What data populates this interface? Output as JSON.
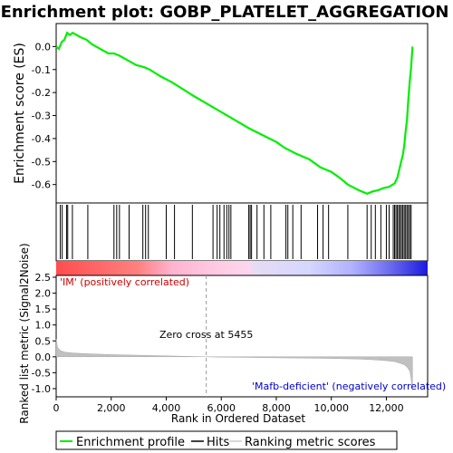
{
  "chart_data": {
    "type": "line",
    "title": "Enrichment plot: GOBP_PLATELET_AGGREGATION",
    "es_panel": {
      "ylabel": "Enrichment score (ES)",
      "ylim": [
        -0.68,
        0.1
      ],
      "yticks": [
        0.0,
        -0.1,
        -0.2,
        -0.3,
        -0.4,
        -0.5,
        -0.6
      ],
      "ytick_labels": [
        "0.0",
        "-0.1",
        "-0.2",
        "-0.3",
        "-0.4",
        "-0.5",
        "-0.6"
      ],
      "color": "#00ee00",
      "x": [
        0,
        100,
        200,
        300,
        400,
        500,
        600,
        900,
        1100,
        1300,
        1600,
        1900,
        2100,
        2300,
        2600,
        2900,
        3200,
        3400,
        3800,
        4200,
        4600,
        5000,
        5500,
        6000,
        6500,
        7000,
        7500,
        8000,
        8300,
        8700,
        9200,
        9600,
        10000,
        10300,
        10600,
        11000,
        11300,
        11500,
        11700,
        11900,
        12100,
        12300,
        12400,
        12500,
        12600,
        12650,
        12700,
        12750,
        12800,
        12850,
        12900,
        12950
      ],
      "values": [
        0.0,
        -0.01,
        0.02,
        0.03,
        0.06,
        0.05,
        0.06,
        0.04,
        0.03,
        0.01,
        -0.01,
        -0.03,
        -0.03,
        -0.04,
        -0.06,
        -0.08,
        -0.09,
        -0.1,
        -0.13,
        -0.155,
        -0.185,
        -0.215,
        -0.25,
        -0.285,
        -0.32,
        -0.355,
        -0.385,
        -0.415,
        -0.44,
        -0.465,
        -0.49,
        -0.525,
        -0.545,
        -0.57,
        -0.6,
        -0.625,
        -0.64,
        -0.63,
        -0.625,
        -0.615,
        -0.61,
        -0.595,
        -0.57,
        -0.52,
        -0.47,
        -0.43,
        -0.37,
        -0.32,
        -0.23,
        -0.15,
        -0.09,
        0.0
      ]
    },
    "hits": [
      150,
      220,
      380,
      420,
      590,
      1150,
      2100,
      2200,
      2300,
      2650,
      3150,
      3250,
      3350,
      4000,
      4300,
      4950,
      5700,
      5850,
      5950,
      6100,
      6200,
      6280,
      6350,
      7000,
      7050,
      7100,
      7300,
      7550,
      7800,
      8350,
      8420,
      8600,
      8900,
      9500,
      9700,
      9900,
      10600,
      11300,
      11450,
      11600,
      11800,
      12000,
      12100,
      12250,
      12300,
      12350,
      12400,
      12450,
      12500,
      12550,
      12600,
      12650,
      12700,
      12750,
      12800,
      12850,
      12900
    ],
    "rank_panel": {
      "xlabel": "Rank in Ordered Dataset",
      "ylabel": "Ranked list metric (Signal2Noise)",
      "ylim": [
        -1.2,
        2.5
      ],
      "yticks": [
        2.5,
        2.0,
        1.5,
        1.0,
        0.5,
        0.0,
        -0.5,
        -1.0
      ],
      "ytick_labels": [
        "2.5",
        "2.0",
        "1.5",
        "1.0",
        "0.5",
        "0.0",
        "-0.5",
        "-1.0"
      ],
      "xlim": [
        0,
        13500
      ],
      "xticks": [
        0,
        2000,
        4000,
        6000,
        8000,
        10000,
        12000
      ],
      "xtick_labels": [
        "0",
        "2,000",
        "4,000",
        "6,000",
        "8,000",
        "10,000",
        "12,000"
      ],
      "zero_cross": 5455,
      "zero_cross_label": "Zero cross at 5455",
      "positive_label": "'IM' (positively correlated)",
      "negative_label": "'Mafb-deficient' (negatively correlated)",
      "metric_curve": {
        "x": [
          0,
          50,
          150,
          300,
          600,
          1000,
          2000,
          3000,
          4000,
          5000,
          5455,
          6000,
          7000,
          8000,
          9000,
          10000,
          11000,
          11500,
          12000,
          12300,
          12500,
          12650,
          12750,
          12850,
          12900,
          12950
        ],
        "values": [
          0.55,
          0.3,
          0.2,
          0.15,
          0.12,
          0.1,
          0.07,
          0.05,
          0.03,
          0.01,
          0.0,
          -0.01,
          -0.02,
          -0.03,
          -0.04,
          -0.05,
          -0.07,
          -0.09,
          -0.12,
          -0.15,
          -0.2,
          -0.25,
          -0.32,
          -0.45,
          -0.7,
          -1.05
        ]
      }
    },
    "legend": {
      "items": [
        "Enrichment profile",
        "Hits",
        "Ranking metric scores"
      ],
      "colors": [
        "#00ee00",
        "#000000",
        "#cccccc"
      ]
    },
    "grid": false
  }
}
